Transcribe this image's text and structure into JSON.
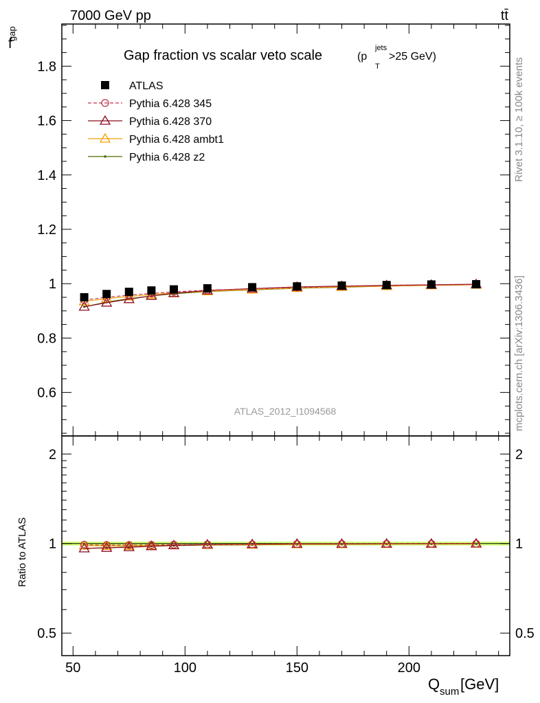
{
  "header": {
    "left": "7000 GeV pp",
    "right": "tt̄",
    "side_top": "Rivet 3.1.10, ≥ 100k events",
    "side_bottom": "mcplots.cern.ch [arXiv:1306.3436]"
  },
  "chart_data": [
    {
      "panel": "main",
      "type": "line",
      "title": "Gap fraction vs scalar veto scale",
      "title_cut": {
        "base": "(p",
        "sup": "jets",
        "sub": "T",
        "tail": ">25 GeV)"
      },
      "ylabel": {
        "base": "f",
        "sub": "gap"
      },
      "analysis_label": "ATLAS_2012_I1094568",
      "xlim": [
        45,
        245
      ],
      "ylim": [
        0.44,
        1.955
      ],
      "y_ticks": [
        0.6,
        0.8,
        1,
        1.2,
        1.4,
        1.6,
        1.8
      ],
      "y_tick_labels": [
        "0.6",
        "0.8",
        "1",
        "1.2",
        "1.4",
        "1.6",
        "1.8"
      ],
      "x": [
        55,
        65,
        75,
        85,
        95,
        110,
        130,
        150,
        170,
        190,
        210,
        230
      ],
      "series": [
        {
          "name": "ATLAS",
          "color": "#000000",
          "marker": "square",
          "line": "none",
          "values": [
            0.95,
            0.962,
            0.97,
            0.975,
            0.979,
            0.983,
            0.987,
            0.99,
            0.993,
            0.995,
            0.997,
            0.998
          ]
        },
        {
          "name": "Pythia 6.428 345",
          "color": "#c0304a",
          "marker": "circle-open",
          "line": "dashed",
          "values": [
            0.94,
            0.95,
            0.958,
            0.964,
            0.97,
            0.976,
            0.981,
            0.986,
            0.99,
            0.993,
            0.995,
            0.997
          ]
        },
        {
          "name": "Pythia 6.428 370",
          "color": "#8b0a1e",
          "marker": "triangle-open",
          "line": "solid",
          "values": [
            0.915,
            0.93,
            0.943,
            0.955,
            0.965,
            0.975,
            0.982,
            0.988,
            0.991,
            0.994,
            0.996,
            0.998
          ]
        },
        {
          "name": "Pythia 6.428 ambt1",
          "color": "#f0a000",
          "marker": "triangle-open",
          "line": "solid",
          "values": [
            0.935,
            0.945,
            0.953,
            0.96,
            0.966,
            0.972,
            0.978,
            0.984,
            0.988,
            0.991,
            0.994,
            0.996
          ]
        },
        {
          "name": "Pythia 6.428 z2",
          "color": "#4d6b00",
          "marker": "dot",
          "line": "solid",
          "values": [
            0.915,
            0.932,
            0.945,
            0.955,
            0.963,
            0.971,
            0.977,
            0.983,
            0.987,
            0.991,
            0.994,
            0.996
          ]
        }
      ],
      "legend_position": "top-left"
    },
    {
      "panel": "ratio",
      "type": "line",
      "ylabel": "Ratio to ATLAS",
      "xlabel": {
        "base": "Q",
        "sub": "sum",
        "tail": " [GeV]"
      },
      "y_scale": "log",
      "ylim": [
        0.42,
        2.3
      ],
      "y_ticks": [
        0.5,
        1,
        2
      ],
      "y_tick_labels": [
        "0.5",
        "1",
        "2"
      ],
      "x_ticks": [
        50,
        100,
        150,
        200
      ],
      "x_tick_labels": [
        "50",
        "100",
        "150",
        "200"
      ],
      "x": [
        55,
        65,
        75,
        85,
        95,
        110,
        130,
        150,
        170,
        190,
        210,
        230
      ],
      "band": {
        "color": "#ccff66",
        "lower": 0.985,
        "upper": 1.015
      },
      "series": [
        {
          "name": "Pythia 6.428 345",
          "color": "#c0304a",
          "marker": "circle-open",
          "line": "dashed",
          "values": [
            0.99,
            0.988,
            0.988,
            0.989,
            0.991,
            0.993,
            0.994,
            0.996,
            0.997,
            0.998,
            0.998,
            0.999
          ]
        },
        {
          "name": "Pythia 6.428 370",
          "color": "#8b0a1e",
          "marker": "triangle-open",
          "line": "solid",
          "values": [
            0.963,
            0.967,
            0.972,
            0.979,
            0.986,
            0.992,
            0.995,
            0.998,
            0.998,
            0.999,
            0.999,
            1.0
          ]
        },
        {
          "name": "Pythia 6.428 ambt1",
          "color": "#f0a000",
          "marker": "triangle-open",
          "line": "solid",
          "values": [
            0.984,
            0.982,
            0.982,
            0.985,
            0.987,
            0.989,
            0.991,
            0.994,
            0.995,
            0.996,
            0.997,
            0.998
          ]
        },
        {
          "name": "Pythia 6.428 z2",
          "color": "#4d6b00",
          "marker": "dot",
          "line": "solid",
          "values": [
            0.963,
            0.969,
            0.974,
            0.98,
            0.984,
            0.988,
            0.99,
            0.993,
            0.994,
            0.996,
            0.997,
            0.998
          ]
        }
      ]
    }
  ]
}
